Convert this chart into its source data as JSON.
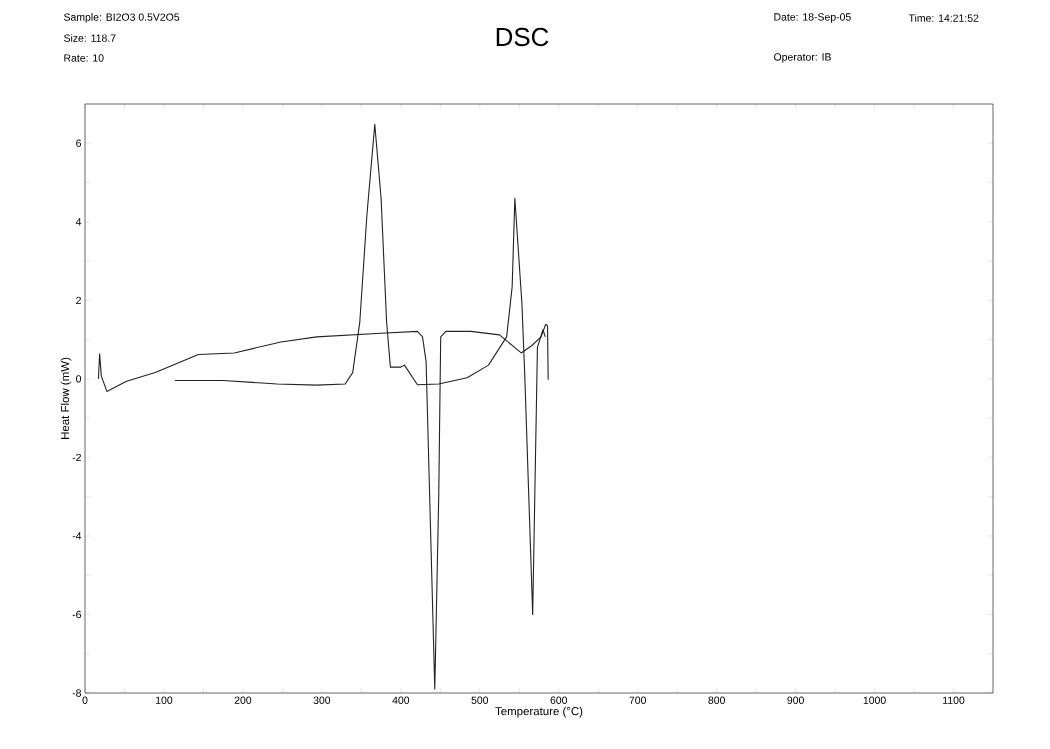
{
  "chart_data": {
    "type": "line",
    "title": "DSC",
    "xlabel": "Temperature (°C)",
    "ylabel": "Heat Flow (mW)",
    "annotations": [
      "Sample: BI2O3 0.5V2O5",
      "Size: 118.7",
      "Rate: 10",
      "Date: 18-Sep-05",
      "Time: 14:21:52",
      "Operator: IB"
    ],
    "xlim": [
      0,
      1150
    ],
    "ylim": [
      -8,
      7
    ],
    "xticks": [
      0,
      {
        "value": 50,
        "label": null
      },
      100,
      {
        "value": 150,
        "label": null
      },
      200,
      {
        "value": 250,
        "label": null
      },
      300,
      {
        "value": 350,
        "label": null
      },
      400,
      {
        "value": 450,
        "label": null
      },
      500,
      {
        "value": 550,
        "label": null
      },
      600,
      {
        "value": 650,
        "label": null
      },
      700,
      {
        "value": 750,
        "label": null
      },
      800,
      {
        "value": 850,
        "label": null
      },
      900,
      {
        "value": 950,
        "label": null
      },
      1000,
      {
        "value": 1050,
        "label": null
      },
      1100
    ],
    "yticks": [
      -8,
      {
        "value": -7,
        "label": null
      },
      -6,
      {
        "value": -5,
        "label": null
      },
      -4,
      {
        "value": -3,
        "label": null
      },
      -2,
      {
        "value": -1,
        "label": null
      },
      0,
      {
        "value": 1,
        "label": null
      },
      2,
      {
        "value": 3,
        "label": null
      },
      4,
      {
        "value": 5,
        "label": null
      },
      6
    ],
    "grid": false,
    "marker": "none",
    "line_style": "solid",
    "series": [
      {
        "color": "#222222",
        "x": [
          17,
          18.5,
          20.7,
          27.7,
          52.6,
          89,
          143.6,
          189,
          248,
          293.5,
          375,
          421,
          427.5,
          432,
          443,
          448,
          450.5,
          457,
          488.5,
          525,
          552.5,
          566,
          577.6,
          583.5,
          585.8,
          586.6
        ],
        "values": [
          0,
          0.64,
          0.07,
          -0.32,
          -0.06,
          0.16,
          0.62,
          0.66,
          0.94,
          1.07,
          1.16,
          1.21,
          1.07,
          0.44,
          -7.9,
          -3,
          1.07,
          1.21,
          1.21,
          1.12,
          0.66,
          0.85,
          1.07,
          1.39,
          1.35,
          -0.02
        ]
      },
      {
        "color": "#222222",
        "x": [
          114,
          175,
          243.5,
          293.5,
          329.5,
          339,
          348,
          357,
          367,
          375,
          382,
          386.8,
          400,
          404.6,
          421,
          448,
          484,
          511,
          534,
          541,
          544.4,
          547,
          550,
          553.4,
          557,
          567,
          573,
          580,
          583
        ],
        "values": [
          -0.04,
          -0.04,
          -0.13,
          -0.16,
          -0.13,
          0.16,
          1.44,
          4.16,
          6.48,
          4.6,
          1.44,
          0.3,
          0.3,
          0.35,
          -0.15,
          -0.13,
          0.03,
          0.35,
          1.07,
          2.35,
          4.6,
          null,
          null,
          1.9,
          0.07,
          -6,
          0.8,
          1.25,
          1.07
        ]
      }
    ]
  }
}
